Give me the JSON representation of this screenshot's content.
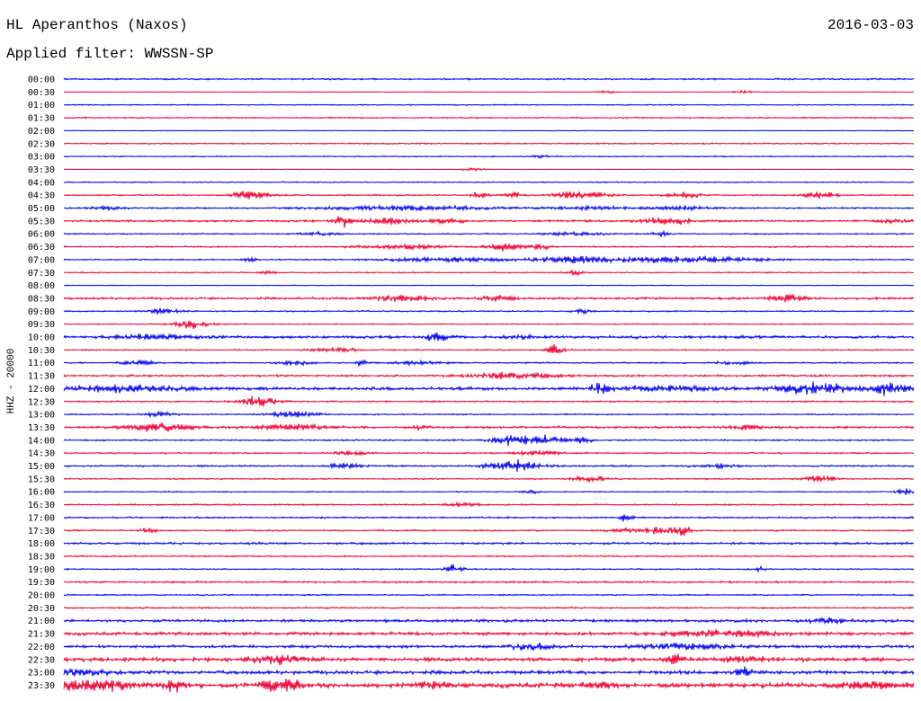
{
  "header": {
    "station": "HL Aperanthos (Naxos)",
    "date": "2016-03-03",
    "filter": "Applied filter: WWSSN-SP",
    "channel": "HHZ - 20000"
  },
  "chart_data": {
    "type": "line",
    "title": "HL Aperanthos (Naxos)",
    "subtitle": "Applied filter: WWSSN-SP",
    "ylabel": "HHZ - 20000",
    "colors": [
      "#0000ee",
      "#ee0033"
    ],
    "rows": [
      {
        "time": "00:00",
        "noise": 0.7,
        "events": []
      },
      {
        "time": "00:30",
        "noise": 0.3,
        "events": [
          {
            "pos": 0.64,
            "amp": 1.5,
            "dur": 0.01
          },
          {
            "pos": 0.8,
            "amp": 1.2,
            "dur": 0.01
          }
        ]
      },
      {
        "time": "01:00",
        "noise": 0.5,
        "events": []
      },
      {
        "time": "01:30",
        "noise": 0.6,
        "events": []
      },
      {
        "time": "02:00",
        "noise": 0.3,
        "events": []
      },
      {
        "time": "02:30",
        "noise": 0.6,
        "events": []
      },
      {
        "time": "03:00",
        "noise": 0.5,
        "events": [
          {
            "pos": 0.56,
            "amp": 1.2,
            "dur": 0.01
          }
        ]
      },
      {
        "time": "03:30",
        "noise": 0.3,
        "events": [
          {
            "pos": 0.48,
            "amp": 1.0,
            "dur": 0.02
          }
        ]
      },
      {
        "time": "04:00",
        "noise": 0.5,
        "events": []
      },
      {
        "time": "04:30",
        "noise": 0.6,
        "events": [
          {
            "pos": 0.22,
            "amp": 4.5,
            "dur": 0.02
          },
          {
            "pos": 0.49,
            "amp": 3.0,
            "dur": 0.01
          },
          {
            "pos": 0.53,
            "amp": 2.5,
            "dur": 0.01
          },
          {
            "pos": 0.61,
            "amp": 4.0,
            "dur": 0.03
          },
          {
            "pos": 0.73,
            "amp": 3.0,
            "dur": 0.02
          },
          {
            "pos": 0.89,
            "amp": 3.5,
            "dur": 0.02
          }
        ]
      },
      {
        "time": "05:00",
        "noise": 0.7,
        "events": [
          {
            "pos": 0.05,
            "amp": 1.5,
            "dur": 0.02
          },
          {
            "pos": 0.4,
            "amp": 2.0,
            "dur": 0.1
          },
          {
            "pos": 0.62,
            "amp": 1.5,
            "dur": 0.05
          },
          {
            "pos": 0.73,
            "amp": 1.5,
            "dur": 0.04
          }
        ]
      },
      {
        "time": "05:30",
        "noise": 0.9,
        "events": [
          {
            "pos": 0.33,
            "amp": 5.0,
            "dur": 0.01
          },
          {
            "pos": 0.38,
            "amp": 3.0,
            "dur": 0.03
          },
          {
            "pos": 0.45,
            "amp": 2.0,
            "dur": 0.02
          },
          {
            "pos": 0.71,
            "amp": 3.5,
            "dur": 0.03
          },
          {
            "pos": 0.98,
            "amp": 2.0,
            "dur": 0.02
          }
        ]
      },
      {
        "time": "06:00",
        "noise": 0.6,
        "events": [
          {
            "pos": 0.3,
            "amp": 1.5,
            "dur": 0.02
          },
          {
            "pos": 0.6,
            "amp": 1.5,
            "dur": 0.04
          },
          {
            "pos": 0.7,
            "amp": 2.5,
            "dur": 0.01
          }
        ]
      },
      {
        "time": "06:30",
        "noise": 0.7,
        "events": [
          {
            "pos": 0.4,
            "amp": 2.0,
            "dur": 0.05
          },
          {
            "pos": 0.52,
            "amp": 3.5,
            "dur": 0.02
          },
          {
            "pos": 0.56,
            "amp": 3.0,
            "dur": 0.01
          }
        ]
      },
      {
        "time": "07:00",
        "noise": 0.6,
        "events": [
          {
            "pos": 0.22,
            "amp": 1.5,
            "dur": 0.01
          },
          {
            "pos": 0.45,
            "amp": 2.0,
            "dur": 0.08
          },
          {
            "pos": 0.6,
            "amp": 3.0,
            "dur": 0.04
          },
          {
            "pos": 0.72,
            "amp": 3.0,
            "dur": 0.1
          }
        ]
      },
      {
        "time": "07:30",
        "noise": 0.5,
        "events": [
          {
            "pos": 0.24,
            "amp": 1.5,
            "dur": 0.01
          },
          {
            "pos": 0.6,
            "amp": 2.5,
            "dur": 0.01
          }
        ]
      },
      {
        "time": "08:00",
        "noise": 0.4,
        "events": []
      },
      {
        "time": "08:30",
        "noise": 1.0,
        "events": [
          {
            "pos": 0.4,
            "amp": 3.5,
            "dur": 0.03
          },
          {
            "pos": 0.51,
            "amp": 3.0,
            "dur": 0.02
          },
          {
            "pos": 0.85,
            "amp": 3.5,
            "dur": 0.02
          }
        ]
      },
      {
        "time": "09:00",
        "noise": 0.6,
        "events": [
          {
            "pos": 0.12,
            "amp": 2.5,
            "dur": 0.02
          },
          {
            "pos": 0.61,
            "amp": 2.0,
            "dur": 0.01
          }
        ]
      },
      {
        "time": "09:30",
        "noise": 0.5,
        "events": [
          {
            "pos": 0.15,
            "amp": 4.0,
            "dur": 0.02
          }
        ]
      },
      {
        "time": "10:00",
        "noise": 1.2,
        "events": [
          {
            "pos": 0.11,
            "amp": 2.5,
            "dur": 0.04
          },
          {
            "pos": 0.44,
            "amp": 6.0,
            "dur": 0.01
          },
          {
            "pos": 0.54,
            "amp": 1.5,
            "dur": 0.02
          }
        ]
      },
      {
        "time": "10:30",
        "noise": 0.6,
        "events": [
          {
            "pos": 0.32,
            "amp": 2.0,
            "dur": 0.03
          },
          {
            "pos": 0.58,
            "amp": 6.5,
            "dur": 0.01
          }
        ]
      },
      {
        "time": "11:00",
        "noise": 0.6,
        "events": [
          {
            "pos": 0.09,
            "amp": 2.5,
            "dur": 0.02
          },
          {
            "pos": 0.27,
            "amp": 2.0,
            "dur": 0.02
          },
          {
            "pos": 0.35,
            "amp": 5.0,
            "dur": 0.005
          },
          {
            "pos": 0.42,
            "amp": 2.0,
            "dur": 0.03
          },
          {
            "pos": 0.79,
            "amp": 1.5,
            "dur": 0.02
          }
        ]
      },
      {
        "time": "11:30",
        "noise": 0.9,
        "events": [
          {
            "pos": 0.53,
            "amp": 3.0,
            "dur": 0.05
          }
        ]
      },
      {
        "time": "12:00",
        "noise": 1.4,
        "events": [
          {
            "pos": 0.06,
            "amp": 3.0,
            "dur": 0.08
          },
          {
            "pos": 0.63,
            "amp": 7.0,
            "dur": 0.01
          },
          {
            "pos": 0.71,
            "amp": 2.5,
            "dur": 0.05
          },
          {
            "pos": 0.88,
            "amp": 5.0,
            "dur": 0.04
          },
          {
            "pos": 0.97,
            "amp": 5.0,
            "dur": 0.03
          }
        ]
      },
      {
        "time": "12:30",
        "noise": 0.7,
        "events": [
          {
            "pos": 0.23,
            "amp": 5.0,
            "dur": 0.02
          }
        ]
      },
      {
        "time": "13:00",
        "noise": 0.6,
        "events": [
          {
            "pos": 0.11,
            "amp": 2.0,
            "dur": 0.02
          },
          {
            "pos": 0.27,
            "amp": 3.0,
            "dur": 0.03
          }
        ]
      },
      {
        "time": "13:30",
        "noise": 1.0,
        "events": [
          {
            "pos": 0.11,
            "amp": 3.5,
            "dur": 0.04
          },
          {
            "pos": 0.27,
            "amp": 2.5,
            "dur": 0.04
          },
          {
            "pos": 0.42,
            "amp": 2.0,
            "dur": 0.01
          },
          {
            "pos": 0.8,
            "amp": 2.0,
            "dur": 0.02
          }
        ]
      },
      {
        "time": "14:00",
        "noise": 0.7,
        "events": [
          {
            "pos": 0.52,
            "amp": 4.0,
            "dur": 0.02
          },
          {
            "pos": 0.56,
            "amp": 4.5,
            "dur": 0.03
          },
          {
            "pos": 0.61,
            "amp": 3.0,
            "dur": 0.01
          }
        ]
      },
      {
        "time": "14:30",
        "noise": 0.6,
        "events": [
          {
            "pos": 0.34,
            "amp": 2.0,
            "dur": 0.02
          },
          {
            "pos": 0.56,
            "amp": 2.0,
            "dur": 0.03
          }
        ]
      },
      {
        "time": "15:00",
        "noise": 0.8,
        "events": [
          {
            "pos": 0.33,
            "amp": 2.5,
            "dur": 0.02
          },
          {
            "pos": 0.53,
            "amp": 5.5,
            "dur": 0.03
          },
          {
            "pos": 0.77,
            "amp": 2.0,
            "dur": 0.02
          }
        ]
      },
      {
        "time": "15:30",
        "noise": 0.6,
        "events": [
          {
            "pos": 0.62,
            "amp": 3.0,
            "dur": 0.02
          },
          {
            "pos": 0.89,
            "amp": 2.5,
            "dur": 0.02
          }
        ]
      },
      {
        "time": "16:00",
        "noise": 0.5,
        "events": [
          {
            "pos": 0.55,
            "amp": 1.5,
            "dur": 0.01
          },
          {
            "pos": 0.99,
            "amp": 3.5,
            "dur": 0.01
          }
        ]
      },
      {
        "time": "16:30",
        "noise": 0.7,
        "events": [
          {
            "pos": 0.47,
            "amp": 1.5,
            "dur": 0.02
          }
        ]
      },
      {
        "time": "17:00",
        "noise": 0.7,
        "events": [
          {
            "pos": 0.66,
            "amp": 3.0,
            "dur": 0.01
          }
        ]
      },
      {
        "time": "17:30",
        "noise": 0.7,
        "events": [
          {
            "pos": 0.1,
            "amp": 2.5,
            "dur": 0.01
          },
          {
            "pos": 0.66,
            "amp": 2.0,
            "dur": 0.02
          },
          {
            "pos": 0.7,
            "amp": 3.5,
            "dur": 0.02
          },
          {
            "pos": 0.73,
            "amp": 4.5,
            "dur": 0.01
          }
        ]
      },
      {
        "time": "18:00",
        "noise": 1.0,
        "events": []
      },
      {
        "time": "18:30",
        "noise": 0.6,
        "events": []
      },
      {
        "time": "19:00",
        "noise": 0.6,
        "events": [
          {
            "pos": 0.46,
            "amp": 4.5,
            "dur": 0.01
          },
          {
            "pos": 0.82,
            "amp": 2.0,
            "dur": 0.01
          }
        ]
      },
      {
        "time": "19:30",
        "noise": 0.8,
        "events": []
      },
      {
        "time": "20:00",
        "noise": 0.6,
        "events": []
      },
      {
        "time": "20:30",
        "noise": 0.7,
        "events": []
      },
      {
        "time": "21:00",
        "noise": 1.2,
        "events": [
          {
            "pos": 0.9,
            "amp": 3.0,
            "dur": 0.02
          }
        ]
      },
      {
        "time": "21:30",
        "noise": 1.4,
        "events": [
          {
            "pos": 0.78,
            "amp": 2.5,
            "dur": 0.08
          }
        ]
      },
      {
        "time": "22:00",
        "noise": 1.3,
        "events": [
          {
            "pos": 0.55,
            "amp": 3.5,
            "dur": 0.02
          },
          {
            "pos": 0.73,
            "amp": 2.5,
            "dur": 0.05
          }
        ]
      },
      {
        "time": "22:30",
        "noise": 1.7,
        "events": [
          {
            "pos": 0.25,
            "amp": 3.0,
            "dur": 0.04
          },
          {
            "pos": 0.72,
            "amp": 6.0,
            "dur": 0.01
          },
          {
            "pos": 0.8,
            "amp": 2.5,
            "dur": 0.03
          }
        ]
      },
      {
        "time": "23:00",
        "noise": 1.6,
        "events": [
          {
            "pos": 0.02,
            "amp": 3.0,
            "dur": 0.03
          },
          {
            "pos": 0.8,
            "amp": 6.0,
            "dur": 0.01
          }
        ]
      },
      {
        "time": "23:30",
        "noise": 2.0,
        "events": [
          {
            "pos": 0.03,
            "amp": 5.0,
            "dur": 0.05
          },
          {
            "pos": 0.13,
            "amp": 5.5,
            "dur": 0.01
          },
          {
            "pos": 0.25,
            "amp": 5.0,
            "dur": 0.02
          },
          {
            "pos": 0.27,
            "amp": 6.0,
            "dur": 0.01
          },
          {
            "pos": 0.43,
            "amp": 3.0,
            "dur": 0.02
          },
          {
            "pos": 0.63,
            "amp": 3.0,
            "dur": 0.02
          },
          {
            "pos": 0.95,
            "amp": 3.0,
            "dur": 0.04
          }
        ]
      }
    ]
  }
}
